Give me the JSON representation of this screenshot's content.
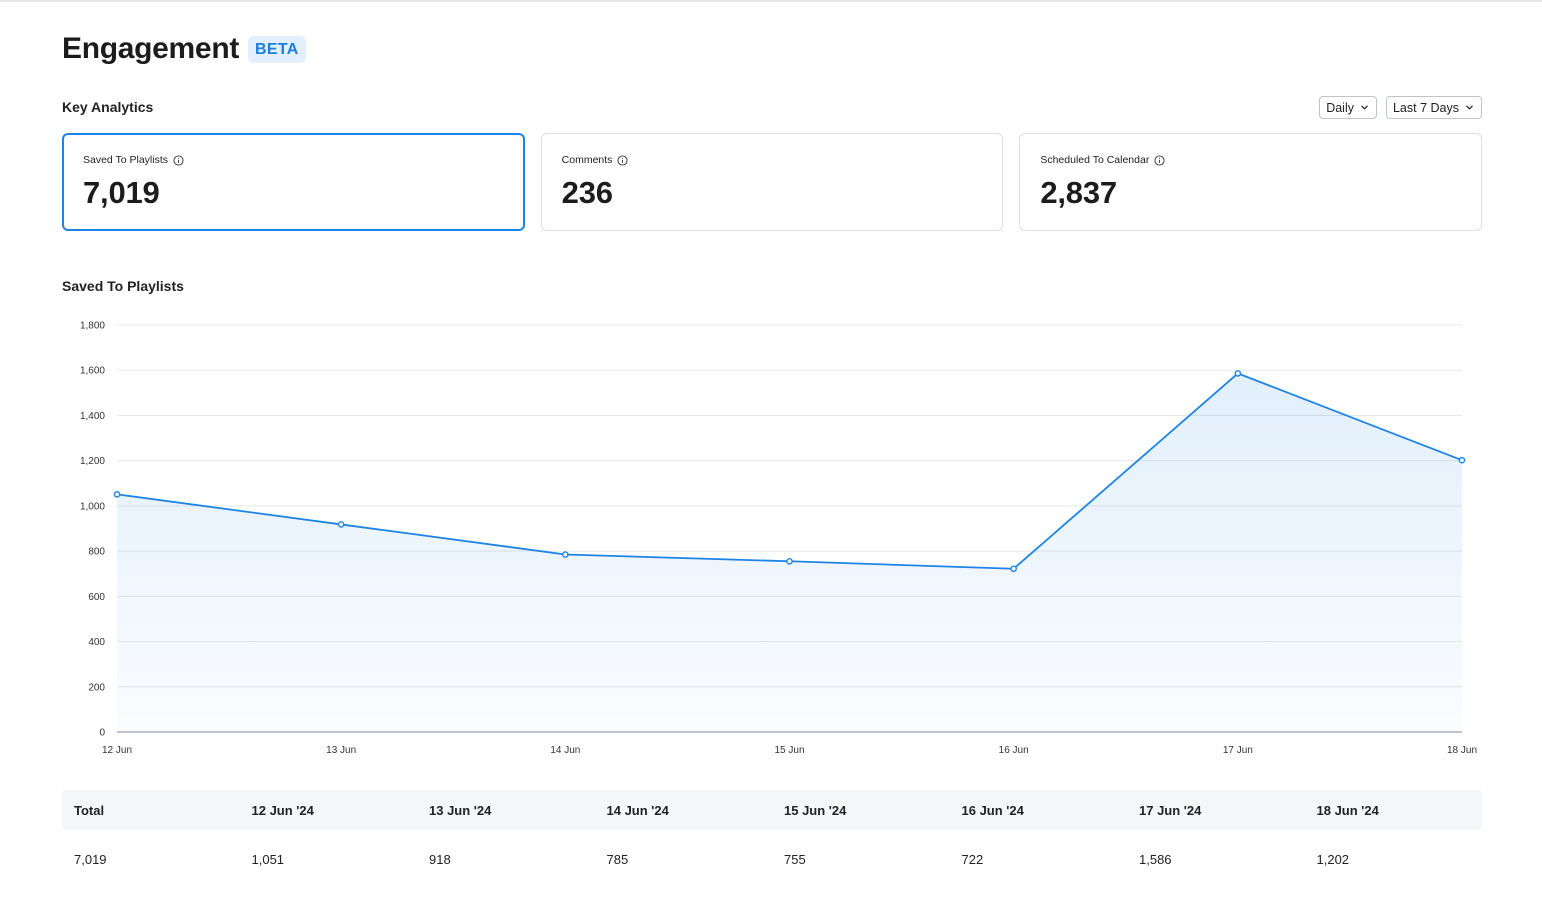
{
  "page": {
    "title": "Engagement",
    "badge": "BETA"
  },
  "key_analytics": {
    "title": "Key Analytics",
    "controls": {
      "interval": "Daily",
      "range": "Last 7 Days"
    },
    "cards": [
      {
        "label": "Saved To Playlists",
        "value": "7,019",
        "active": true
      },
      {
        "label": "Comments",
        "value": "236",
        "active": false
      },
      {
        "label": "Scheduled To Calendar",
        "value": "2,837",
        "active": false
      }
    ]
  },
  "chart_section": {
    "title": "Saved To Playlists"
  },
  "chart_data": {
    "type": "area",
    "categories": [
      "12 Jun",
      "13 Jun",
      "14 Jun",
      "15 Jun",
      "16 Jun",
      "17 Jun",
      "18 Jun"
    ],
    "series": [
      {
        "values": [
          1051,
          918,
          785,
          755,
          722,
          1586,
          1202
        ]
      }
    ],
    "yticks": [
      "0",
      "200",
      "400",
      "600",
      "800",
      "1,000",
      "1,200",
      "1,400",
      "1,600",
      "1,800"
    ],
    "ylim": [
      0,
      1800
    ],
    "grid": true,
    "legend": "none",
    "color": "#1d84e6"
  },
  "table": {
    "headers": [
      "Total",
      "12 Jun '24",
      "13 Jun '24",
      "14 Jun '24",
      "15 Jun '24",
      "16 Jun '24",
      "17 Jun '24",
      "18 Jun '24"
    ],
    "row": [
      "7,019",
      "1,051",
      "918",
      "785",
      "755",
      "722",
      "1,586",
      "1,202"
    ]
  },
  "icons": {
    "info": "info-circle-icon",
    "dropdown": "chevron-down-icon"
  }
}
